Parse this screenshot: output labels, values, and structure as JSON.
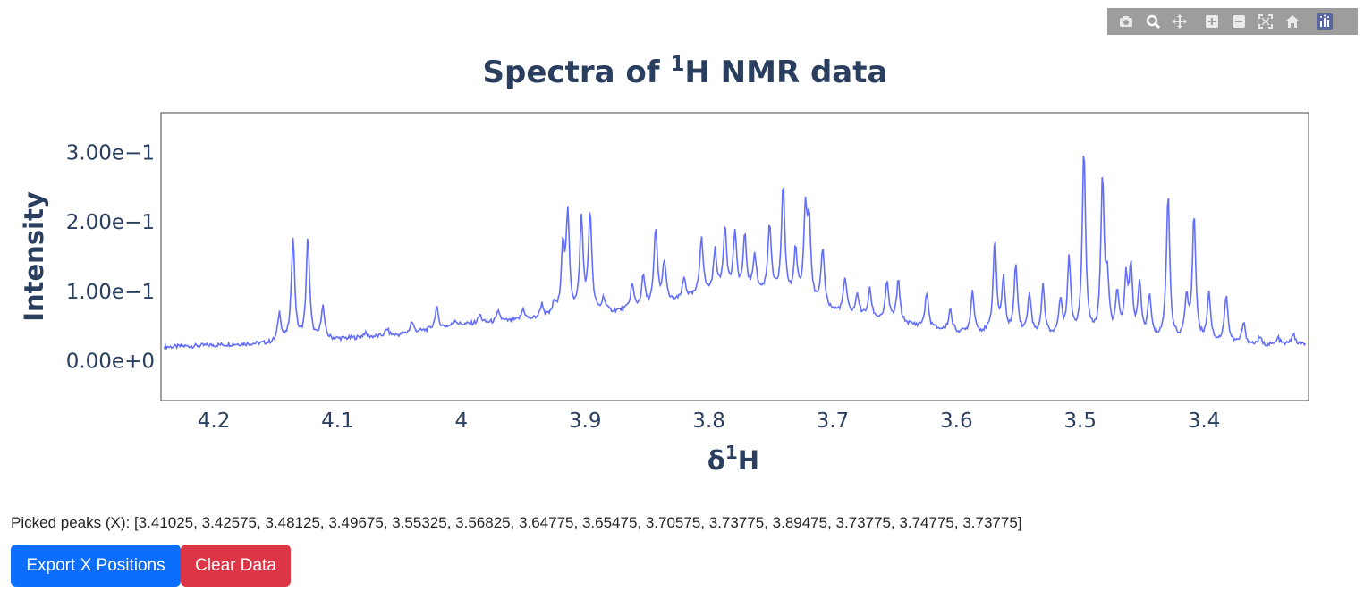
{
  "modebar": {
    "buttons": [
      {
        "name": "camera-icon"
      },
      {
        "name": "zoom-icon"
      },
      {
        "name": "pan-icon"
      },
      {
        "name": "zoom-in-icon"
      },
      {
        "name": "zoom-out-icon"
      },
      {
        "name": "autoscale-icon"
      },
      {
        "name": "reset-axes-icon"
      }
    ],
    "logo": "plotly-logo-icon"
  },
  "chart_data": {
    "type": "line",
    "title_main": "Spectra of ",
    "title_sup": "1",
    "title_rest": "H NMR data",
    "xlabel_main": "δ",
    "xlabel_sup": "1",
    "xlabel_rest": "H",
    "ylabel": "Intensity",
    "x_reversed": true,
    "xlim": [
      4.2427,
      3.3155
    ],
    "ylim": [
      -0.057,
      0.357
    ],
    "x_ticks": [
      4.2,
      4.1,
      4,
      3.9,
      3.8,
      3.7,
      3.6,
      3.5,
      3.4
    ],
    "x_tick_labels": [
      "4.2",
      "4.1",
      "4",
      "3.9",
      "3.8",
      "3.7",
      "3.6",
      "3.5",
      "3.4"
    ],
    "y_ticks": [
      0,
      0.1,
      0.2,
      0.3
    ],
    "y_tick_labels": [
      "0.00e+0",
      "1.00e−1",
      "2.00e−1",
      "3.00e−1"
    ],
    "line_color": "#636efa",
    "baseline": [
      [
        4.24,
        0.02
      ],
      [
        4.18,
        0.024
      ],
      [
        4.15,
        0.025
      ],
      [
        4.1,
        0.031
      ],
      [
        4.05,
        0.037
      ],
      [
        4.0,
        0.052
      ],
      [
        3.95,
        0.058
      ],
      [
        3.9,
        0.065
      ],
      [
        3.85,
        0.075
      ],
      [
        3.8,
        0.095
      ],
      [
        3.75,
        0.095
      ],
      [
        3.7,
        0.07
      ],
      [
        3.65,
        0.055
      ],
      [
        3.6,
        0.04
      ],
      [
        3.55,
        0.036
      ],
      [
        3.5,
        0.032
      ],
      [
        3.45,
        0.03
      ],
      [
        3.4,
        0.026
      ],
      [
        3.35,
        0.022
      ],
      [
        3.32,
        0.024
      ]
    ],
    "peaks": [
      [
        4.147,
        0.042
      ],
      [
        4.136,
        0.15
      ],
      [
        4.124,
        0.148
      ],
      [
        4.112,
        0.048
      ],
      [
        4.078,
        0.006
      ],
      [
        4.06,
        0.01
      ],
      [
        4.04,
        0.016
      ],
      [
        4.02,
        0.03
      ],
      [
        4.005,
        0.008
      ],
      [
        3.985,
        0.012
      ],
      [
        3.97,
        0.015
      ],
      [
        3.95,
        0.016
      ],
      [
        3.935,
        0.02
      ],
      [
        3.925,
        0.018
      ],
      [
        3.918,
        0.095
      ],
      [
        3.914,
        0.14
      ],
      [
        3.903,
        0.135
      ],
      [
        3.896,
        0.145
      ],
      [
        3.885,
        0.02
      ],
      [
        3.862,
        0.035
      ],
      [
        3.853,
        0.045
      ],
      [
        3.843,
        0.11
      ],
      [
        3.836,
        0.06
      ],
      [
        3.82,
        0.03
      ],
      [
        3.806,
        0.085
      ],
      [
        3.795,
        0.06
      ],
      [
        3.787,
        0.095
      ],
      [
        3.779,
        0.085
      ],
      [
        3.771,
        0.08
      ],
      [
        3.763,
        0.055
      ],
      [
        3.751,
        0.1
      ],
      [
        3.74,
        0.158
      ],
      [
        3.73,
        0.07
      ],
      [
        3.722,
        0.125
      ],
      [
        3.719,
        0.11
      ],
      [
        3.708,
        0.085
      ],
      [
        3.69,
        0.05
      ],
      [
        3.68,
        0.03
      ],
      [
        3.67,
        0.04
      ],
      [
        3.656,
        0.055
      ],
      [
        3.647,
        0.06
      ],
      [
        3.624,
        0.05
      ],
      [
        3.605,
        0.032
      ],
      [
        3.587,
        0.06
      ],
      [
        3.569,
        0.135
      ],
      [
        3.562,
        0.075
      ],
      [
        3.552,
        0.1
      ],
      [
        3.541,
        0.06
      ],
      [
        3.53,
        0.07
      ],
      [
        3.516,
        0.05
      ],
      [
        3.509,
        0.11
      ],
      [
        3.497,
        0.27
      ],
      [
        3.482,
        0.225
      ],
      [
        3.478,
        0.07
      ],
      [
        3.47,
        0.06
      ],
      [
        3.463,
        0.08
      ],
      [
        3.459,
        0.095
      ],
      [
        3.452,
        0.075
      ],
      [
        3.444,
        0.06
      ],
      [
        3.429,
        0.21
      ],
      [
        3.414,
        0.06
      ],
      [
        3.408,
        0.18
      ],
      [
        3.396,
        0.07
      ],
      [
        3.382,
        0.07
      ],
      [
        3.368,
        0.03
      ],
      [
        3.355,
        0.01
      ],
      [
        3.34,
        0.01
      ],
      [
        3.328,
        0.015
      ]
    ]
  },
  "footer": {
    "picked_label": "Picked peaks (X): [3.41025, 3.42575, 3.48125, 3.49675, 3.55325, 3.56825, 3.64775, 3.65475, 3.70575, 3.73775, 3.89475, 3.73775, 3.74775, 3.73775]",
    "export_button": "Export X Positions",
    "clear_button": "Clear Data"
  }
}
